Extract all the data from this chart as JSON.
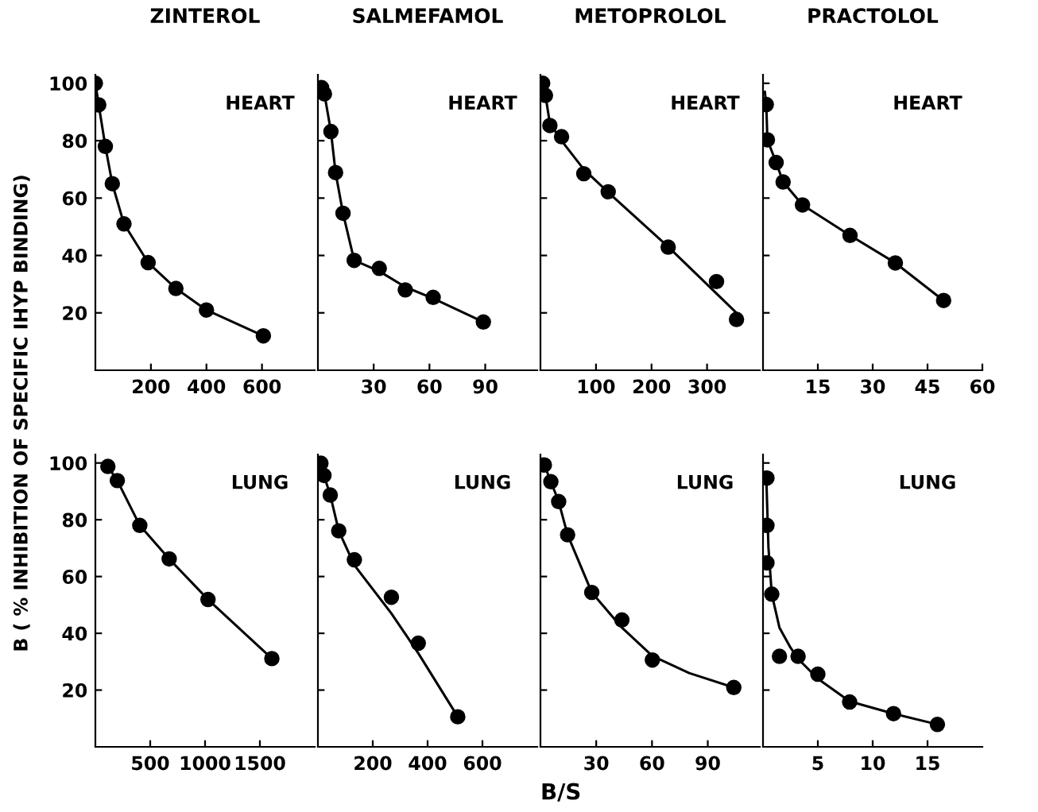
{
  "chart_data": [
    {
      "type": "scatter",
      "title": "ZINTEROL",
      "ylabel": "B ( % INHIBITION OF SPECIFIC IHYP BINDING)",
      "annotations": [
        "HEART"
      ],
      "xlim": [
        0,
        790
      ],
      "xticks": [
        200,
        400,
        600
      ],
      "ylim": [
        0,
        103
      ],
      "yticks": [
        20,
        40,
        60,
        80,
        100
      ],
      "series": [
        {
          "marker": "circle",
          "color": "#000000",
          "x": [
            0,
            12,
            36,
            61,
            103,
            190,
            290,
            400,
            605
          ],
          "values": [
            100,
            92.5,
            78,
            65,
            51,
            37.5,
            28.5,
            21,
            12
          ]
        },
        {
          "type": "line",
          "color": "#000000",
          "x": [
            0,
            12,
            36,
            61,
            103,
            190,
            290,
            400,
            605
          ],
          "values": [
            100,
            92.5,
            78,
            65,
            51,
            37.5,
            28.5,
            21,
            12
          ]
        }
      ]
    },
    {
      "type": "scatter",
      "title": "SALMEFAMOL",
      "annotations": [
        "HEART"
      ],
      "xlim": [
        0,
        118
      ],
      "xticks": [
        30,
        60,
        90
      ],
      "ylim": [
        0,
        103
      ],
      "yticks": [
        20,
        40,
        60,
        80,
        100
      ],
      "tick_labels": "x",
      "series": [
        {
          "marker": "circle",
          "color": "#000000",
          "x": [
            2,
            3.5,
            7,
            9.5,
            13.5,
            19.5,
            33,
            47,
            62,
            89
          ],
          "values": [
            98.5,
            96.3,
            83.2,
            68.9,
            54.7,
            38.3,
            35.5,
            28,
            25.4,
            16.8
          ]
        },
        {
          "type": "line",
          "color": "#000000",
          "x": [
            0,
            2,
            3.5,
            7,
            9.5,
            13.5,
            19.5,
            33,
            47,
            62,
            89
          ],
          "values": [
            100,
            98.5,
            96.3,
            83.2,
            68.9,
            54.7,
            38.3,
            34.5,
            29,
            25,
            16.8
          ]
        }
      ]
    },
    {
      "type": "scatter",
      "title": "METOPROLOL",
      "annotations": [
        "HEART"
      ],
      "xlim": [
        0,
        395
      ],
      "xticks": [
        100,
        200,
        300
      ],
      "ylim": [
        0,
        103
      ],
      "yticks": [
        20,
        40,
        60,
        80,
        100
      ],
      "tick_labels": "x",
      "series": [
        {
          "marker": "circle",
          "color": "#000000",
          "x": [
            4,
            9,
            17,
            38,
            78,
            122,
            230,
            317,
            353
          ],
          "values": [
            100,
            95.8,
            85.3,
            81.4,
            68.5,
            62.2,
            42.9,
            30.9,
            17.7
          ]
        },
        {
          "type": "line",
          "color": "#000000",
          "x": [
            0,
            9,
            17,
            38,
            78,
            122,
            230,
            353
          ],
          "values": [
            100,
            95.8,
            86,
            80,
            70,
            62,
            43,
            20
          ]
        }
      ]
    },
    {
      "type": "scatter",
      "title": "PRACTOLOL",
      "annotations": [
        "HEART"
      ],
      "xlim": [
        0,
        60
      ],
      "xticks": [
        15,
        30,
        45,
        60
      ],
      "ylim": [
        0,
        103
      ],
      "yticks": [
        20,
        40,
        60,
        80,
        100
      ],
      "tick_labels": "x",
      "series": [
        {
          "marker": "circle",
          "color": "#000000",
          "x": [
            0.9,
            1.2,
            3.6,
            5.5,
            10.8,
            23.8,
            36.2,
            49.4
          ],
          "values": [
            92.6,
            80.3,
            72.4,
            65.6,
            57.6,
            47,
            37.4,
            24.3
          ]
        },
        {
          "type": "line",
          "color": "#000000",
          "x": [
            0.5,
            0.9,
            1.2,
            3.6,
            5.5,
            10.8,
            23.8,
            36.2,
            49.4
          ],
          "values": [
            97,
            92.6,
            80.3,
            72.4,
            65.6,
            57.6,
            47,
            37.4,
            24.3
          ]
        }
      ]
    },
    {
      "type": "scatter",
      "annotations": [
        "LUNG"
      ],
      "xlim": [
        0,
        2000
      ],
      "xticks": [
        500,
        1000,
        1500
      ],
      "ylim": [
        0,
        103
      ],
      "yticks": [
        20,
        40,
        60,
        80,
        100
      ],
      "series": [
        {
          "marker": "circle",
          "color": "#000000",
          "x": [
            114,
            200,
            405,
            673,
            1027,
            1609
          ],
          "values": [
            98.8,
            93.8,
            78,
            66.2,
            51.9,
            31.1
          ]
        },
        {
          "type": "line",
          "color": "#000000",
          "x": [
            114,
            200,
            405,
            673,
            1027,
            1609
          ],
          "values": [
            98.8,
            93.8,
            78,
            66.2,
            51.9,
            31.1
          ]
        }
      ]
    },
    {
      "type": "scatter",
      "annotations": [
        "LUNG"
      ],
      "xlim": [
        0,
        800
      ],
      "xticks": [
        200,
        400,
        600
      ],
      "ylim": [
        0,
        103
      ],
      "yticks": [
        20,
        40,
        60,
        80,
        100
      ],
      "tick_labels": "x",
      "series": [
        {
          "marker": "circle",
          "color": "#000000",
          "x": [
            11,
            22,
            45,
            76,
            133,
            268,
            366,
            510
          ],
          "values": [
            99.9,
            95.6,
            88.7,
            76.1,
            65.9,
            52.7,
            36.5,
            10.6
          ]
        },
        {
          "type": "line",
          "color": "#000000",
          "x": [
            11,
            22,
            45,
            76,
            133,
            268,
            366,
            510
          ],
          "values": [
            99.9,
            95.6,
            88.7,
            76.1,
            64,
            47,
            33,
            10.6
          ]
        }
      ]
    },
    {
      "type": "scatter",
      "xlabel": "B/S",
      "annotations": [
        "LUNG"
      ],
      "xlim": [
        0,
        118
      ],
      "xticks": [
        30,
        60,
        90
      ],
      "ylim": [
        0,
        103
      ],
      "yticks": [
        20,
        40,
        60,
        80,
        100
      ],
      "tick_labels": "x",
      "series": [
        {
          "marker": "circle",
          "color": "#000000",
          "x": [
            2.1,
            5.6,
            9.8,
            14.6,
            27.6,
            43.8,
            60.2,
            104
          ],
          "values": [
            99.3,
            93.4,
            86.4,
            74.7,
            54.4,
            44.7,
            30.6,
            20.9
          ]
        },
        {
          "type": "line",
          "color": "#000000",
          "x": [
            2.1,
            5.6,
            9.8,
            14.6,
            27.6,
            43.8,
            60.2,
            80,
            104
          ],
          "values": [
            99.3,
            93.4,
            86.4,
            74.7,
            54.4,
            42,
            32,
            26,
            20.9
          ]
        }
      ]
    },
    {
      "type": "scatter",
      "annotations": [
        "LUNG"
      ],
      "xlim": [
        0,
        20
      ],
      "xticks": [
        5,
        10,
        15
      ],
      "ylim": [
        0,
        103
      ],
      "yticks": [
        20,
        40,
        60,
        80,
        100
      ],
      "tick_labels": "x",
      "series": [
        {
          "marker": "circle",
          "color": "#000000",
          "x": [
            0.36,
            0.36,
            0.36,
            0.8,
            1.5,
            3.2,
            5.0,
            7.9,
            11.9,
            15.9
          ],
          "values": [
            94.7,
            78,
            64.8,
            53.8,
            31.9,
            31.9,
            25.6,
            15.8,
            11.7,
            7.9
          ]
        },
        {
          "type": "line",
          "color": "#000000",
          "x": [
            0.3,
            0.5,
            0.8,
            1.5,
            2.5,
            3.2,
            5.0,
            7.9,
            11.9,
            15.9
          ],
          "values": [
            95,
            70,
            53.8,
            42,
            35,
            31,
            24,
            16,
            11.7,
            7.9
          ]
        }
      ]
    }
  ]
}
